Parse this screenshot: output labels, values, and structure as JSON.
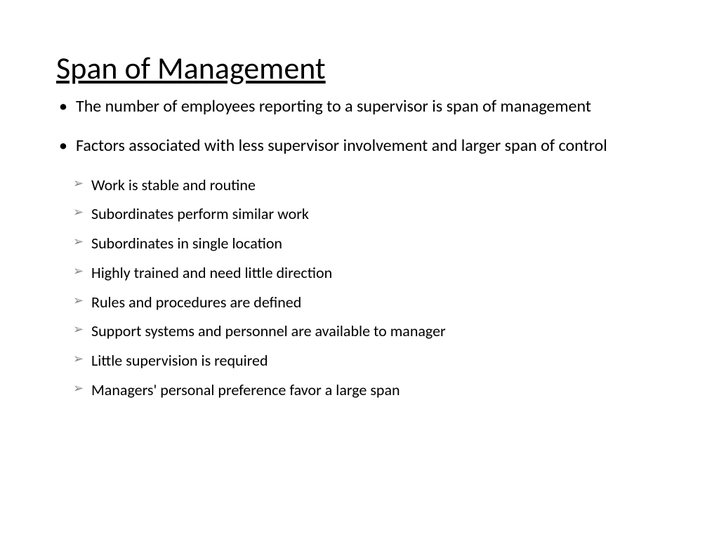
{
  "title": "Span of Management",
  "main_bullets": [
    "The number of employees reporting to a supervisor is span of management",
    "Factors associated with less supervisor involvement and larger span of control"
  ],
  "sub_bullets": [
    "Work is stable and routine",
    "Subordinates perform similar work",
    "Subordinates in single location",
    "Highly trained and need little direction",
    "Rules and procedures are defined",
    "Support systems and personnel are available to manager",
    "Little supervision is required",
    "Managers' personal preference favor a large span"
  ],
  "styling": {
    "background_color": "#ffffff",
    "text_color": "#000000",
    "title_fontsize": 44,
    "main_bullet_fontsize": 24,
    "sub_bullet_fontsize": 22,
    "sub_bullet_marker_color": "#888888",
    "font_family": "Calibri"
  }
}
